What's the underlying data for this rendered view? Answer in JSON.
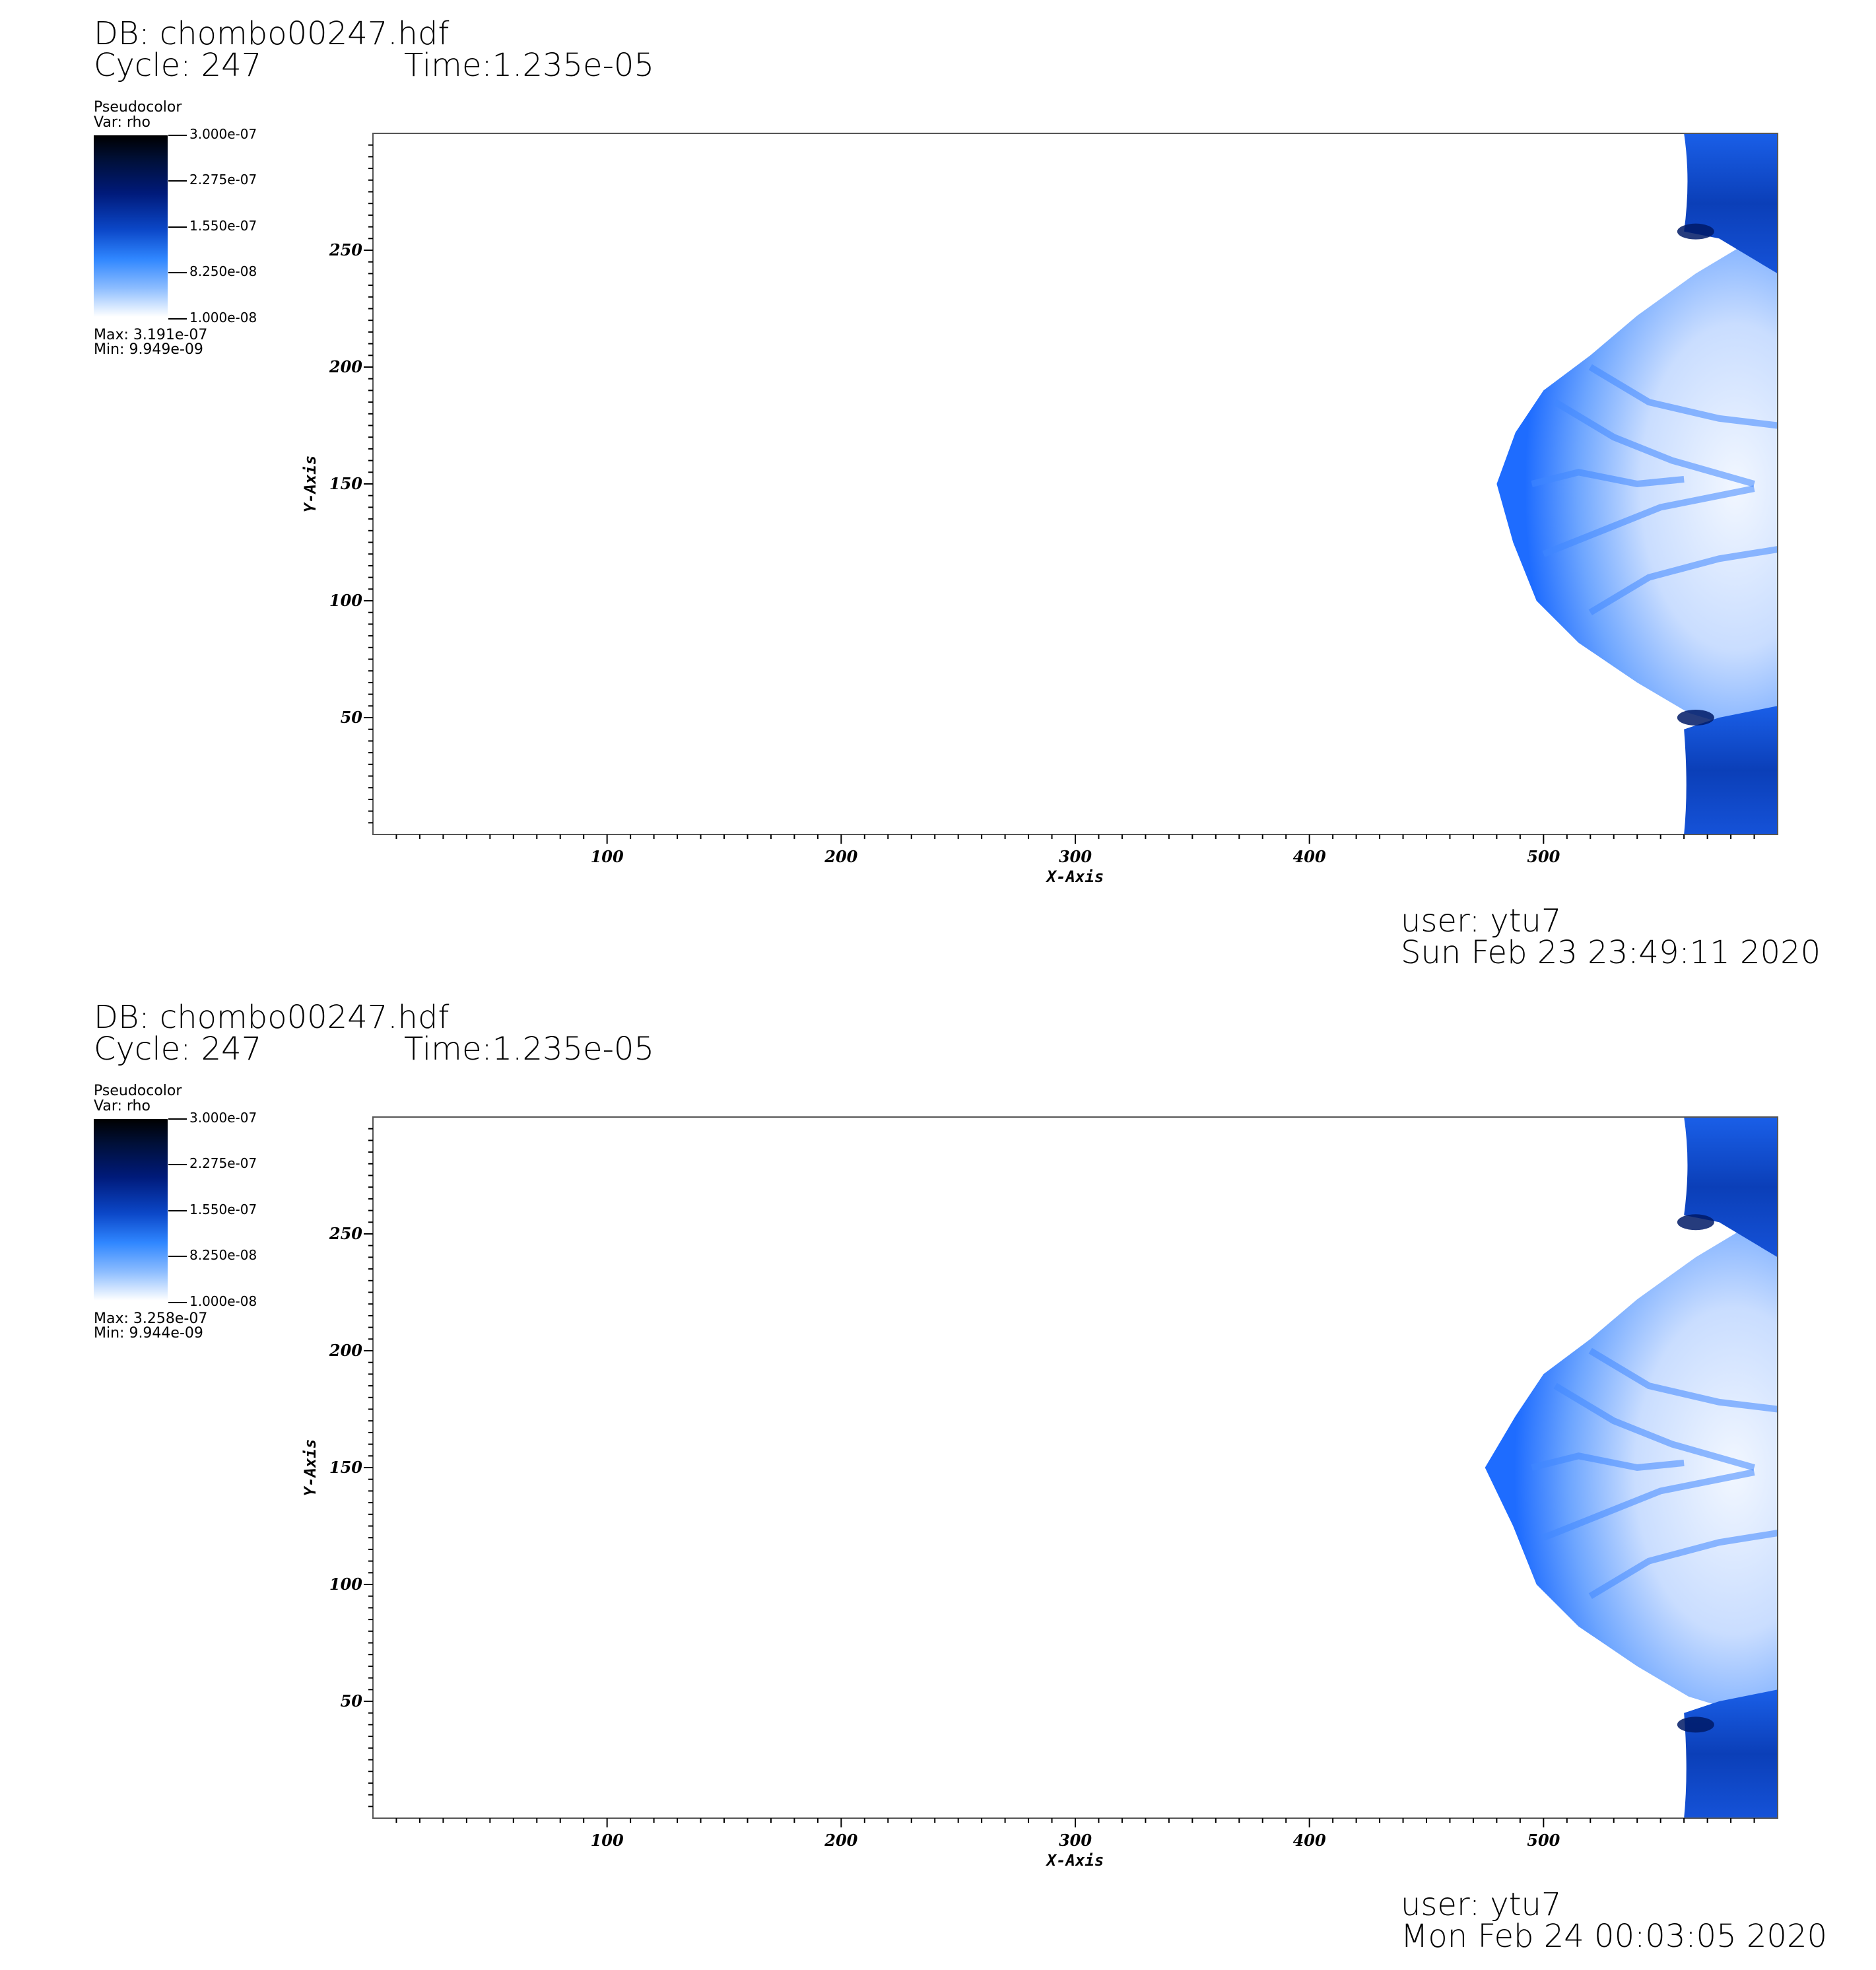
{
  "chart_data": [
    {
      "type": "heatmap",
      "db": "DB: chombo00247.hdf",
      "cycle": "Cycle: 247",
      "time": "Time:1.235e-05",
      "legend": {
        "title": "Pseudocolor",
        "var": "Var: rho",
        "ticks": [
          "3.000e-07",
          "2.275e-07",
          "1.550e-07",
          "8.250e-08",
          "1.000e-08"
        ],
        "max": "Max:  3.191e-07",
        "min": "Min:  9.949e-09"
      },
      "xlabel": "X-Axis",
      "ylabel": "Y-Axis",
      "xlim": [
        0,
        600
      ],
      "ylim": [
        0,
        300
      ],
      "xticks": [
        100,
        200,
        300,
        400,
        500
      ],
      "yticks": [
        50,
        100,
        150,
        200,
        250
      ],
      "colors": {
        "low": "#ffffff",
        "mid": "#1e6cff",
        "high": "#000000"
      },
      "user": "user: ytu7",
      "date": "Sun Feb 23 23:49:11 2020"
    },
    {
      "type": "heatmap",
      "db": "DB: chombo00247.hdf",
      "cycle": "Cycle: 247",
      "time": "Time:1.235e-05",
      "legend": {
        "title": "Pseudocolor",
        "var": "Var: rho",
        "ticks": [
          "3.000e-07",
          "2.275e-07",
          "1.550e-07",
          "8.250e-08",
          "1.000e-08"
        ],
        "max": "Max:  3.258e-07",
        "min": "Min:  9.944e-09"
      },
      "xlabel": "X-Axis",
      "ylabel": "Y-Axis",
      "xlim": [
        0,
        600
      ],
      "ylim": [
        0,
        300
      ],
      "xticks": [
        100,
        200,
        300,
        400,
        500
      ],
      "yticks": [
        50,
        100,
        150,
        200,
        250
      ],
      "colors": {
        "low": "#ffffff",
        "mid": "#1e6cff",
        "high": "#000000"
      },
      "user": "user: ytu7",
      "date": "Mon Feb 24 00:03:05 2020"
    }
  ]
}
